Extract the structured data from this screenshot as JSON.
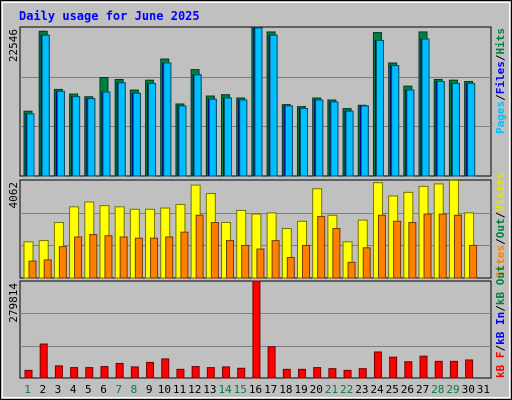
{
  "chart_data": [
    {
      "type": "bar",
      "title": "Daily usage for June 2025",
      "ylabel_parts": [
        "Pages",
        "/",
        "Files",
        "/",
        "Hits"
      ],
      "ymax_label": "22546",
      "ylim": [
        0,
        22546
      ],
      "series": [
        {
          "name": "Hits",
          "color": "#008040",
          "values": [
            9800,
            21900,
            13100,
            12400,
            12000,
            14900,
            14600,
            13000,
            14500,
            17700,
            10900,
            16100,
            12100,
            12300,
            11800,
            22500,
            21800,
            10800,
            10500,
            11800,
            11500,
            10200,
            10700,
            21700,
            17100,
            13600,
            21800,
            14600,
            14500,
            14300
          ]
        },
        {
          "name": "Files",
          "color": "#0000ff",
          "values": [
            9400,
            21300,
            12800,
            12000,
            11700,
            12700,
            14100,
            12500,
            14000,
            17100,
            10600,
            15300,
            11600,
            11800,
            11500,
            22400,
            21300,
            10600,
            10200,
            11500,
            11200,
            9800,
            10600,
            20500,
            16700,
            13000,
            20700,
            14300,
            14000,
            14000
          ]
        },
        {
          "name": "Pages",
          "color": "#00bfff",
          "values": [
            9400,
            21300,
            12800,
            12000,
            11700,
            12700,
            14100,
            12500,
            14000,
            17100,
            10600,
            15300,
            11600,
            11800,
            11500,
            22400,
            21300,
            10600,
            10200,
            11500,
            11200,
            9800,
            10600,
            20500,
            16700,
            13000,
            20700,
            14300,
            14000,
            14000
          ]
        }
      ]
    },
    {
      "type": "bar",
      "ylabel_parts": [
        "Sites",
        "/",
        "Out",
        "/",
        "Visits"
      ],
      "ymax_label": "4062",
      "ylim": [
        0,
        4062
      ],
      "series": [
        {
          "name": "Visits",
          "color": "#ffff00",
          "values": [
            1500,
            1550,
            2300,
            2950,
            3150,
            3000,
            2950,
            2850,
            2850,
            2900,
            3050,
            3850,
            3500,
            2300,
            2800,
            2650,
            2700,
            2050,
            2350,
            3700,
            2600,
            1500,
            2400,
            3950,
            3400,
            3550,
            3800,
            3900,
            4050,
            2700
          ]
        },
        {
          "name": "Sites",
          "color": "#ff8000",
          "values": [
            700,
            750,
            1300,
            1700,
            1800,
            1750,
            1700,
            1650,
            1650,
            1700,
            1900,
            2600,
            2300,
            1550,
            1350,
            1200,
            1550,
            850,
            1350,
            2550,
            2050,
            650,
            1250,
            2600,
            2350,
            2300,
            2650,
            2650,
            2600,
            1350
          ]
        }
      ]
    },
    {
      "type": "bar",
      "ylabel_parts": [
        "kB F",
        "/",
        "kB In",
        "/",
        "kB Out"
      ],
      "ymax_label": "279814",
      "ylim": [
        0,
        279814
      ],
      "series": [
        {
          "name": "kB F",
          "color": "#ff0000",
          "values": [
            22000,
            98000,
            35000,
            30000,
            30000,
            33000,
            42000,
            32000,
            45000,
            55000,
            25000,
            33000,
            30000,
            32000,
            28000,
            279814,
            90000,
            25000,
            25000,
            30000,
            27000,
            22000,
            27000,
            75000,
            60000,
            47000,
            63000,
            48000,
            48000,
            52000
          ]
        }
      ]
    }
  ],
  "x": {
    "days": [
      "1",
      "2",
      "3",
      "4",
      "5",
      "6",
      "7",
      "8",
      "9",
      "10",
      "11",
      "12",
      "13",
      "14",
      "15",
      "16",
      "17",
      "18",
      "19",
      "20",
      "21",
      "22",
      "23",
      "24",
      "25",
      "26",
      "27",
      "28",
      "29",
      "30",
      "31"
    ],
    "weekend_color": "#008040",
    "weekday_color": "#000000",
    "weekend_days": [
      "1",
      "7",
      "8",
      "14",
      "15",
      "21",
      "22",
      "28",
      "29"
    ]
  },
  "colors": {
    "page_bg": "#c0c0c0",
    "title": "#0000ff",
    "grid": "#808080",
    "label_pages": "#00bfff",
    "label_files": "#0000ff",
    "label_hits": "#008040",
    "label_sites": "#ff8000",
    "label_out": "#008040",
    "label_visits": "#e6e600",
    "label_kbf": "#ff0000",
    "label_kbin": "#0000ff",
    "label_kbout": "#008040",
    "separator": "#000000"
  }
}
